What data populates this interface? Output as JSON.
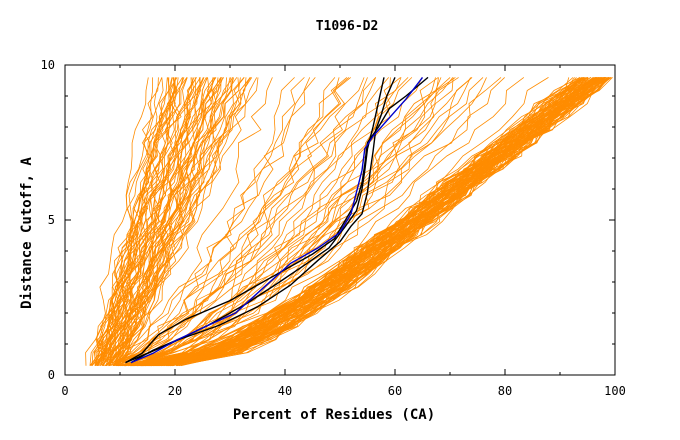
{
  "chart_data": {
    "type": "line",
    "title": "T1096-D2",
    "xlabel": "Percent of Residues (CA)",
    "ylabel": "Distance Cutoff, A",
    "xlim": [
      0,
      100
    ],
    "ylim": [
      0,
      10
    ],
    "xticks": [
      "0",
      "20",
      "40",
      "60",
      "80",
      "100"
    ],
    "yticks": [
      "0",
      "5",
      "10"
    ],
    "grid": false,
    "colors": {
      "background_curves": "#ff8c00",
      "highlight_black": "#000000",
      "highlight_blue": "#0000cc"
    },
    "highlight_series": [
      {
        "color": "black",
        "points": [
          [
            11,
            0.4
          ],
          [
            14,
            0.7
          ],
          [
            17,
            1.3
          ],
          [
            22,
            1.8
          ],
          [
            30,
            2.4
          ],
          [
            38,
            3.2
          ],
          [
            45,
            3.9
          ],
          [
            49,
            4.4
          ],
          [
            51,
            5.0
          ],
          [
            53,
            5.6
          ],
          [
            54,
            6.2
          ],
          [
            54.5,
            6.8
          ],
          [
            55,
            7.5
          ],
          [
            57,
            8.0
          ],
          [
            59,
            8.6
          ],
          [
            62,
            9.0
          ],
          [
            66,
            9.6
          ]
        ]
      },
      {
        "color": "black",
        "points": [
          [
            12,
            0.4
          ],
          [
            16,
            0.8
          ],
          [
            20,
            1.1
          ],
          [
            28,
            1.6
          ],
          [
            35,
            2.2
          ],
          [
            41,
            2.9
          ],
          [
            46,
            3.7
          ],
          [
            50,
            4.3
          ],
          [
            52,
            4.8
          ],
          [
            54,
            5.2
          ],
          [
            55,
            5.9
          ],
          [
            55.5,
            6.6
          ],
          [
            56,
            7.2
          ],
          [
            56.5,
            7.9
          ],
          [
            57.5,
            8.4
          ],
          [
            58.5,
            9.0
          ],
          [
            60,
            9.6
          ]
        ]
      },
      {
        "color": "black",
        "points": [
          [
            11,
            0.4
          ],
          [
            15,
            0.7
          ],
          [
            19,
            1.0
          ],
          [
            26,
            1.6
          ],
          [
            33,
            2.3
          ],
          [
            39,
            3.0
          ],
          [
            44,
            3.6
          ],
          [
            48,
            4.1
          ],
          [
            51,
            4.8
          ],
          [
            53,
            5.3
          ],
          [
            54,
            6.0
          ],
          [
            54.5,
            6.6
          ],
          [
            55,
            7.3
          ],
          [
            56,
            8.0
          ],
          [
            57,
            8.8
          ],
          [
            58,
            9.6
          ]
        ]
      },
      {
        "color": "blue",
        "points": [
          [
            12,
            0.4
          ],
          [
            16,
            0.7
          ],
          [
            20,
            1.1
          ],
          [
            26,
            1.6
          ],
          [
            31,
            2.0
          ],
          [
            36,
            2.8
          ],
          [
            41,
            3.6
          ],
          [
            46,
            4.1
          ],
          [
            50,
            4.6
          ],
          [
            52,
            5.2
          ],
          [
            53,
            5.9
          ],
          [
            54,
            6.6
          ],
          [
            54.5,
            7.3
          ],
          [
            56,
            7.7
          ],
          [
            59,
            8.3
          ],
          [
            62,
            8.9
          ],
          [
            65,
            9.6
          ]
        ]
      }
    ],
    "background_families": [
      {
        "count": 70,
        "start": [
          [
            3.8,
            0.3
          ],
          [
            11,
            0.3
          ]
        ],
        "end": [
          [
            14,
            9.6
          ],
          [
            37,
            9.6
          ]
        ],
        "bulge": 0.18
      },
      {
        "count": 40,
        "start": [
          [
            6,
            0.3
          ],
          [
            15,
            0.3
          ]
        ],
        "end": [
          [
            35,
            9.6
          ],
          [
            95,
            9.6
          ]
        ],
        "bulge": 0.55
      },
      {
        "count": 45,
        "start": [
          [
            10,
            0.3
          ],
          [
            22,
            0.3
          ]
        ],
        "end": [
          [
            92,
            9.6
          ],
          [
            99.5,
            9.6
          ]
        ],
        "bulge": 0.85
      },
      {
        "count": 45,
        "start": [
          [
            9,
            0.3
          ],
          [
            20,
            0.3
          ]
        ],
        "end": [
          [
            96,
            9.6
          ],
          [
            100,
            9.6
          ]
        ],
        "bulge": 0.95
      }
    ]
  }
}
